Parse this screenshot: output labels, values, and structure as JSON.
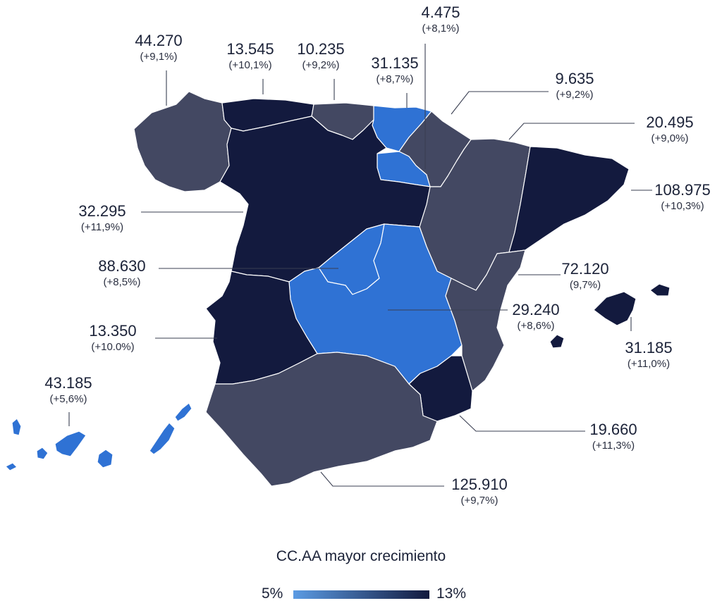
{
  "colors": {
    "low": "#2f72d4",
    "mid": "#434862",
    "high": "#131a3e",
    "gradient_start": "#5b9be3",
    "gradient_end": "#131a3e"
  },
  "regions": {
    "galicia": {
      "value": "44.270",
      "change": "(+9,1%)",
      "tier": "mid"
    },
    "asturias": {
      "value": "13.545",
      "change": "(+10,1%)",
      "tier": "high"
    },
    "cantabria": {
      "value": "10.235",
      "change": "(+9,2%)",
      "tier": "mid"
    },
    "pais_vasco": {
      "value": "31.135",
      "change": "(+8,7%)",
      "tier": "low"
    },
    "la_rioja": {
      "value": "4.475",
      "change": "(+8,1%)",
      "tier": "low"
    },
    "navarra": {
      "value": "9.635",
      "change": "(+9,2%)",
      "tier": "mid"
    },
    "aragon": {
      "value": "20.495",
      "change": "(+9,0%)",
      "tier": "mid"
    },
    "cataluna": {
      "value": "108.975",
      "change": "(+10,3%)",
      "tier": "high"
    },
    "castilla_leon": {
      "value": "32.295",
      "change": "(+11,9%)",
      "tier": "high"
    },
    "madrid": {
      "value": "88.630",
      "change": "(+8,5%)",
      "tier": "low"
    },
    "valencia": {
      "value": "72.120",
      "change": "(9,7%)",
      "tier": "mid"
    },
    "castilla_mancha": {
      "value": "29.240",
      "change": "(+8,6%)",
      "tier": "low"
    },
    "baleares": {
      "value": "31.185",
      "change": "(+11,0%)",
      "tier": "high"
    },
    "extremadura": {
      "value": "13.350",
      "change": "(+10.0%)",
      "tier": "high"
    },
    "canarias": {
      "value": "43.185",
      "change": "(+5,6%)",
      "tier": "low"
    },
    "murcia": {
      "value": "19.660",
      "change": "(+11,3%)",
      "tier": "high"
    },
    "andalucia": {
      "value": "125.910",
      "change": "(+9,7%)",
      "tier": "mid"
    }
  },
  "legend": {
    "title": "CC.AA mayor crecimiento",
    "min_label": "5%",
    "max_label": "13%"
  }
}
